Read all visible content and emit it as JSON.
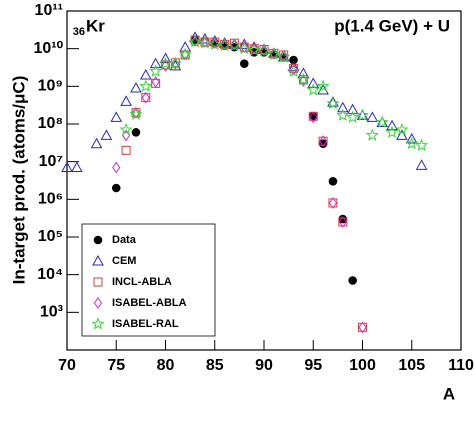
{
  "chart_data": {
    "type": "scatter",
    "annotations": [
      "36",
      "Kr",
      "p(1.4 GeV) + U"
    ],
    "xlabel": "A",
    "ylabel": "In-target prod. (atoms/μC)",
    "xlim": [
      70,
      110
    ],
    "xticks": [
      70,
      75,
      80,
      85,
      90,
      95,
      100,
      105,
      110
    ],
    "ylim": [
      100,
      100000000000
    ],
    "ylog": true,
    "yticks": [
      {
        "value": 1000,
        "label": "10³"
      },
      {
        "value": 10000,
        "label": "10⁴"
      },
      {
        "value": 100000,
        "label": "10⁵"
      },
      {
        "value": 1000000,
        "label": "10⁶"
      },
      {
        "value": 10000000,
        "label": "10⁷"
      },
      {
        "value": 100000000,
        "label": "10⁸"
      },
      {
        "value": 1000000000,
        "label": "10⁹"
      },
      {
        "value": 10000000000,
        "label": "10¹⁰"
      },
      {
        "value": 100000000000,
        "label": "10¹¹"
      }
    ],
    "legend": "lower left",
    "series": [
      {
        "name": "Data",
        "color": "#000000",
        "marker": "circle",
        "x": [
          75,
          77,
          83,
          85,
          86,
          87,
          88,
          89,
          90,
          91,
          92,
          93,
          95,
          96,
          97,
          98,
          99
        ],
        "values": [
          2000000,
          60000000,
          17000000000,
          14000000000,
          12000000000,
          11000000000,
          4000000000,
          8000000000,
          8000000000,
          7000000000,
          6000000000,
          5000000000,
          160000000,
          30000000,
          3000000,
          300000,
          7000
        ]
      },
      {
        "name": "CEM",
        "color": "#2a2aa8",
        "marker": "triangle",
        "x": [
          70,
          71,
          73,
          74,
          75,
          76,
          77,
          78,
          79,
          80,
          81,
          82,
          83,
          84,
          85,
          86,
          87,
          88,
          89,
          90,
          91,
          92,
          93,
          94,
          95,
          96,
          97,
          98,
          99,
          100,
          101,
          102,
          103,
          104,
          105,
          106
        ],
        "values": [
          7000000,
          7000000,
          30000000,
          50000000,
          150000000,
          400000000,
          900000000,
          2000000000,
          4000000000,
          5500000000,
          3500000000,
          11000000000,
          20000000000,
          18000000000,
          16000000000,
          14000000000,
          13000000000,
          13000000000,
          11000000000,
          9500000000,
          7500000000,
          6000000000,
          3300000000,
          2200000000,
          1200000000,
          800000000,
          380000000,
          270000000,
          240000000,
          170000000,
          150000000,
          110000000,
          90000000,
          50000000,
          40000000,
          8000000
        ]
      },
      {
        "name": "INCL-ABLA",
        "color": "#d83c3c",
        "marker": "square",
        "x": [
          76,
          77,
          78,
          79,
          80,
          81,
          82,
          83,
          84,
          85,
          86,
          87,
          88,
          89,
          90,
          91,
          92,
          93,
          94,
          95,
          96,
          97,
          98,
          100
        ],
        "values": [
          20000000,
          200000000,
          500000000,
          1200000000,
          3700000000,
          4200000000,
          6800000000,
          17000000000,
          15000000000,
          15000000000,
          13000000000,
          14000000000,
          11000000000,
          10000000000,
          9500000000,
          7500000000,
          6800000000,
          3000000000,
          1500000000,
          160000000,
          35000000,
          800000,
          250000,
          400
        ]
      },
      {
        "name": "ISABEL-ABLA",
        "color": "#d028d0",
        "marker": "diamond",
        "x": [
          75,
          76,
          77,
          78,
          79,
          80,
          81,
          82,
          83,
          84,
          85,
          86,
          87,
          88,
          89,
          90,
          91,
          92,
          93,
          94,
          95,
          96,
          97,
          98,
          100
        ],
        "values": [
          7000000,
          50000000,
          200000000,
          500000000,
          1300000000,
          3500000000,
          4000000000,
          7000000000,
          16000000000,
          15000000000,
          14000000000,
          13000000000,
          13000000000,
          11000000000,
          10000000000,
          9000000000,
          7500000000,
          6500000000,
          2800000000,
          1400000000,
          150000000,
          35000000,
          800000,
          250000,
          400
        ]
      },
      {
        "name": "ISABEL-RAL",
        "color": "#3ad43a",
        "marker": "star",
        "x": [
          76,
          77,
          78,
          79,
          80,
          81,
          82,
          83,
          84,
          85,
          86,
          87,
          88,
          89,
          90,
          91,
          92,
          93,
          94,
          95,
          96,
          97,
          98,
          99,
          100,
          101,
          102,
          103,
          104,
          105,
          106
        ],
        "values": [
          70000000,
          180000000,
          1000000000,
          2500000000,
          4000000000,
          4000000000,
          7000000000,
          15000000000,
          14000000000,
          13000000000,
          12000000000,
          12000000000,
          10000000000,
          9000000000,
          8500000000,
          7000000000,
          6000000000,
          2500000000,
          1500000000,
          800000000,
          1000000000,
          350000000,
          170000000,
          150000000,
          170000000,
          50000000,
          110000000,
          60000000,
          70000000,
          30000000,
          27000000
        ]
      }
    ]
  }
}
